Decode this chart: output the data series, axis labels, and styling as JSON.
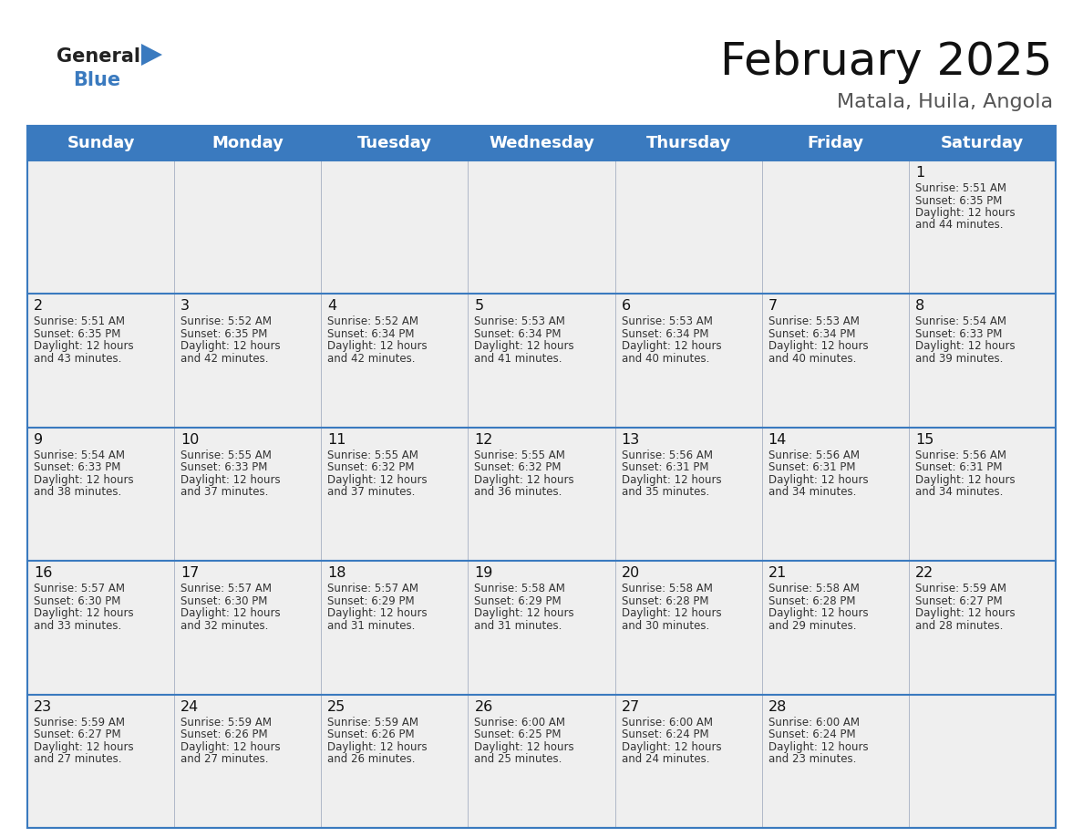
{
  "title": "February 2025",
  "subtitle": "Matala, Huila, Angola",
  "header_color": "#3a7abf",
  "header_text_color": "#ffffff",
  "cell_bg_color": "#efefef",
  "day_headers": [
    "Sunday",
    "Monday",
    "Tuesday",
    "Wednesday",
    "Thursday",
    "Friday",
    "Saturday"
  ],
  "title_fontsize": 36,
  "subtitle_fontsize": 16,
  "header_fontsize": 13,
  "day_num_fontsize": 11.5,
  "info_fontsize": 8.5,
  "line_color": "#3a7abf",
  "logo_general_color": "#222222",
  "logo_blue_color": "#3a7abf",
  "logo_triangle_color": "#3a7abf",
  "calendar": [
    [
      null,
      null,
      null,
      null,
      null,
      null,
      {
        "day": 1,
        "sunrise": "5:51 AM",
        "sunset": "6:35 PM",
        "daylight": "12 hours",
        "daylight2": "and 44 minutes."
      }
    ],
    [
      {
        "day": 2,
        "sunrise": "5:51 AM",
        "sunset": "6:35 PM",
        "daylight": "12 hours",
        "daylight2": "and 43 minutes."
      },
      {
        "day": 3,
        "sunrise": "5:52 AM",
        "sunset": "6:35 PM",
        "daylight": "12 hours",
        "daylight2": "and 42 minutes."
      },
      {
        "day": 4,
        "sunrise": "5:52 AM",
        "sunset": "6:34 PM",
        "daylight": "12 hours",
        "daylight2": "and 42 minutes."
      },
      {
        "day": 5,
        "sunrise": "5:53 AM",
        "sunset": "6:34 PM",
        "daylight": "12 hours",
        "daylight2": "and 41 minutes."
      },
      {
        "day": 6,
        "sunrise": "5:53 AM",
        "sunset": "6:34 PM",
        "daylight": "12 hours",
        "daylight2": "and 40 minutes."
      },
      {
        "day": 7,
        "sunrise": "5:53 AM",
        "sunset": "6:34 PM",
        "daylight": "12 hours",
        "daylight2": "and 40 minutes."
      },
      {
        "day": 8,
        "sunrise": "5:54 AM",
        "sunset": "6:33 PM",
        "daylight": "12 hours",
        "daylight2": "and 39 minutes."
      }
    ],
    [
      {
        "day": 9,
        "sunrise": "5:54 AM",
        "sunset": "6:33 PM",
        "daylight": "12 hours",
        "daylight2": "and 38 minutes."
      },
      {
        "day": 10,
        "sunrise": "5:55 AM",
        "sunset": "6:33 PM",
        "daylight": "12 hours",
        "daylight2": "and 37 minutes."
      },
      {
        "day": 11,
        "sunrise": "5:55 AM",
        "sunset": "6:32 PM",
        "daylight": "12 hours",
        "daylight2": "and 37 minutes."
      },
      {
        "day": 12,
        "sunrise": "5:55 AM",
        "sunset": "6:32 PM",
        "daylight": "12 hours",
        "daylight2": "and 36 minutes."
      },
      {
        "day": 13,
        "sunrise": "5:56 AM",
        "sunset": "6:31 PM",
        "daylight": "12 hours",
        "daylight2": "and 35 minutes."
      },
      {
        "day": 14,
        "sunrise": "5:56 AM",
        "sunset": "6:31 PM",
        "daylight": "12 hours",
        "daylight2": "and 34 minutes."
      },
      {
        "day": 15,
        "sunrise": "5:56 AM",
        "sunset": "6:31 PM",
        "daylight": "12 hours",
        "daylight2": "and 34 minutes."
      }
    ],
    [
      {
        "day": 16,
        "sunrise": "5:57 AM",
        "sunset": "6:30 PM",
        "daylight": "12 hours",
        "daylight2": "and 33 minutes."
      },
      {
        "day": 17,
        "sunrise": "5:57 AM",
        "sunset": "6:30 PM",
        "daylight": "12 hours",
        "daylight2": "and 32 minutes."
      },
      {
        "day": 18,
        "sunrise": "5:57 AM",
        "sunset": "6:29 PM",
        "daylight": "12 hours",
        "daylight2": "and 31 minutes."
      },
      {
        "day": 19,
        "sunrise": "5:58 AM",
        "sunset": "6:29 PM",
        "daylight": "12 hours",
        "daylight2": "and 31 minutes."
      },
      {
        "day": 20,
        "sunrise": "5:58 AM",
        "sunset": "6:28 PM",
        "daylight": "12 hours",
        "daylight2": "and 30 minutes."
      },
      {
        "day": 21,
        "sunrise": "5:58 AM",
        "sunset": "6:28 PM",
        "daylight": "12 hours",
        "daylight2": "and 29 minutes."
      },
      {
        "day": 22,
        "sunrise": "5:59 AM",
        "sunset": "6:27 PM",
        "daylight": "12 hours",
        "daylight2": "and 28 minutes."
      }
    ],
    [
      {
        "day": 23,
        "sunrise": "5:59 AM",
        "sunset": "6:27 PM",
        "daylight": "12 hours",
        "daylight2": "and 27 minutes."
      },
      {
        "day": 24,
        "sunrise": "5:59 AM",
        "sunset": "6:26 PM",
        "daylight": "12 hours",
        "daylight2": "and 27 minutes."
      },
      {
        "day": 25,
        "sunrise": "5:59 AM",
        "sunset": "6:26 PM",
        "daylight": "12 hours",
        "daylight2": "and 26 minutes."
      },
      {
        "day": 26,
        "sunrise": "6:00 AM",
        "sunset": "6:25 PM",
        "daylight": "12 hours",
        "daylight2": "and 25 minutes."
      },
      {
        "day": 27,
        "sunrise": "6:00 AM",
        "sunset": "6:24 PM",
        "daylight": "12 hours",
        "daylight2": "and 24 minutes."
      },
      {
        "day": 28,
        "sunrise": "6:00 AM",
        "sunset": "6:24 PM",
        "daylight": "12 hours",
        "daylight2": "and 23 minutes."
      },
      null
    ]
  ]
}
